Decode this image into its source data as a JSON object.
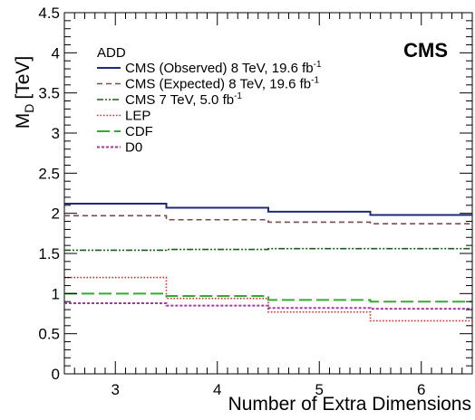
{
  "chart_data": {
    "type": "line",
    "step": true,
    "title": "",
    "xlabel": "Number of Extra Dimensions",
    "ylabel_main": "M",
    "ylabel_sub": "D",
    "ylabel_unit": "[TeV]",
    "xlim": [
      2.5,
      6.5
    ],
    "ylim": [
      0,
      4.5
    ],
    "xticks": [
      "3",
      "4",
      "5",
      "6"
    ],
    "yticks": [
      "0",
      "0.5",
      "1",
      "1.5",
      "2",
      "2.5",
      "3",
      "3.5",
      "4",
      "4.5"
    ],
    "grid": false,
    "legend_position": "top-left",
    "legend_header": "ADD",
    "experiment_label": "CMS",
    "x": [
      3,
      4,
      5,
      6
    ],
    "series": [
      {
        "name": "CMS (Observed) 8 TeV, 19.6 fb",
        "sup": "-1",
        "values": [
          2.12,
          2.07,
          2.02,
          1.98
        ],
        "color": "#1f2a7a",
        "dash": "",
        "width": 2
      },
      {
        "name": "CMS (Expected) 8 TeV, 19.6 fb",
        "sup": "-1",
        "values": [
          1.97,
          1.92,
          1.89,
          1.87
        ],
        "color": "#7a4a4a",
        "dash": "6,4",
        "width": 1.6
      },
      {
        "name": "CMS 7 TeV, 5.0 fb",
        "sup": "-1",
        "values": [
          1.54,
          1.55,
          1.56,
          1.56
        ],
        "color": "#1a5c1a",
        "dash": "7,2,2,2,2,2",
        "width": 1.6
      },
      {
        "name": "LEP",
        "sup": "",
        "values": [
          1.2,
          0.94,
          0.77,
          0.66
        ],
        "color": "#dd2222",
        "dash": "1.5,2",
        "width": 1.6
      },
      {
        "name": "CDF",
        "sup": "",
        "values": [
          1.0,
          0.97,
          0.92,
          0.9
        ],
        "color": "#33aa33",
        "dash": "14,5",
        "width": 2
      },
      {
        "name": "D0",
        "sup": "",
        "values": [
          0.88,
          0.85,
          0.82,
          0.81
        ],
        "color": "#aa33aa",
        "dash": "3,2",
        "width": 2
      }
    ]
  }
}
